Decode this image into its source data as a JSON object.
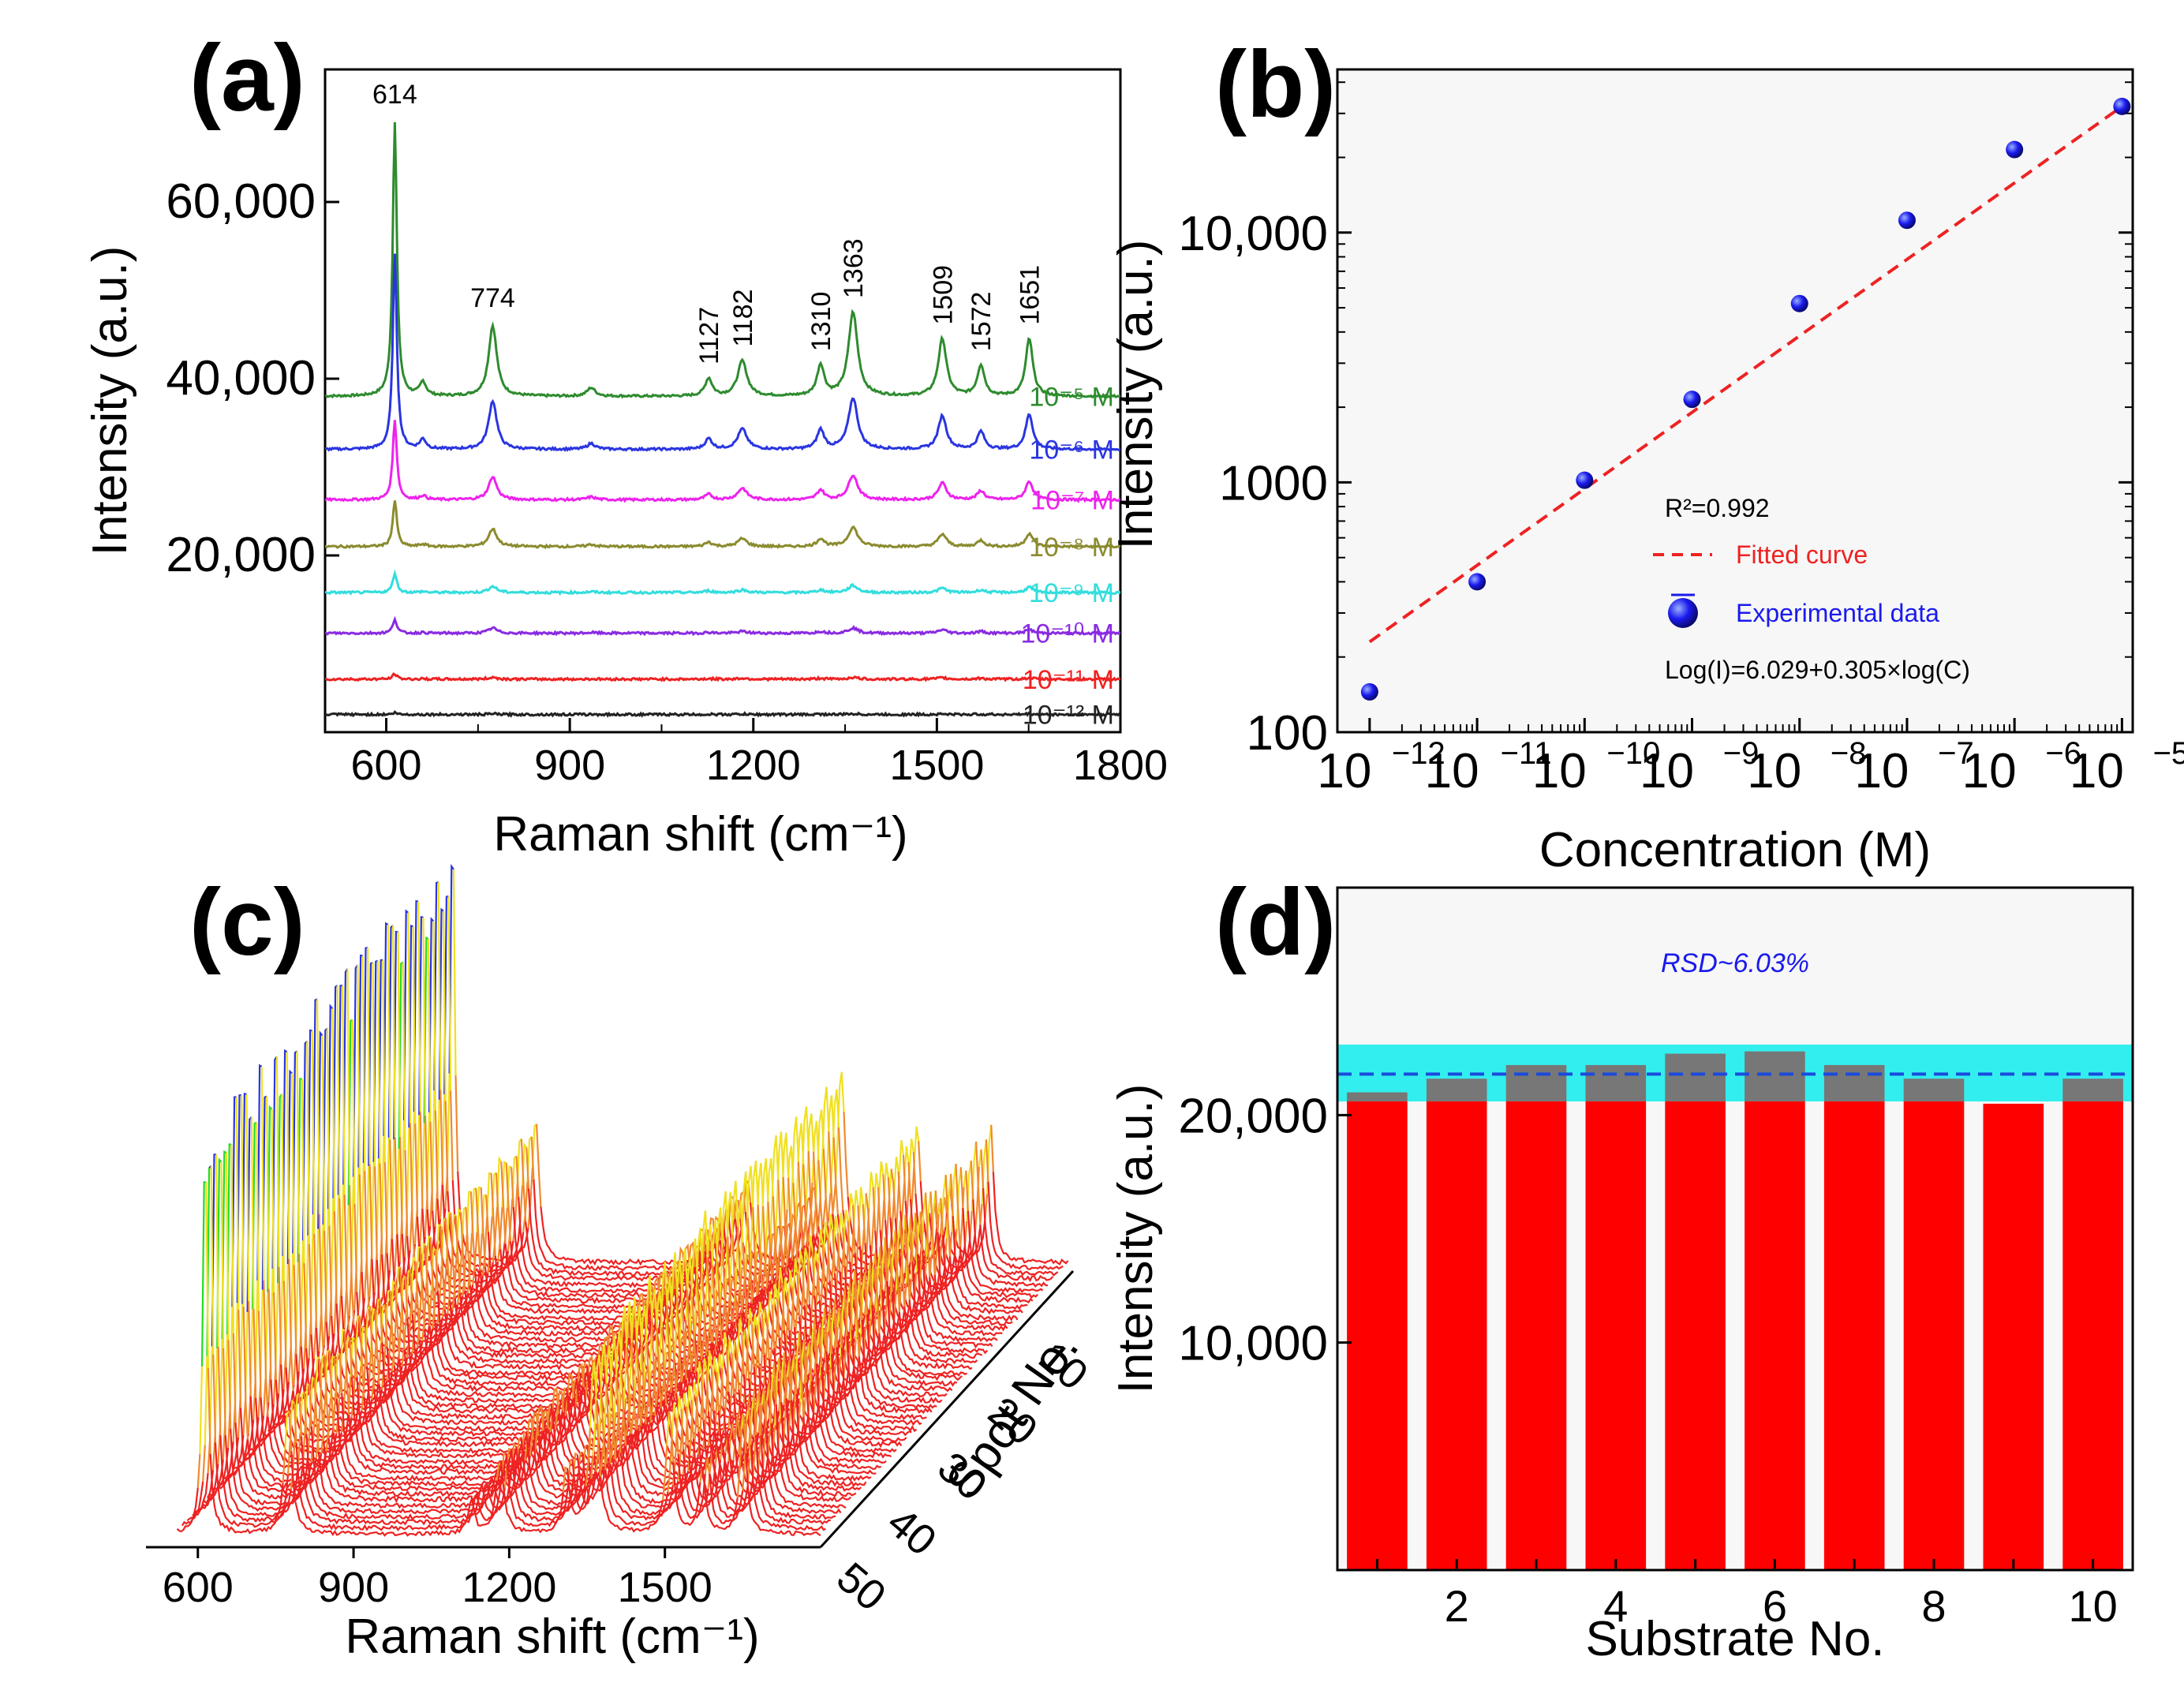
{
  "chart_data": [
    {
      "panel": "(a)",
      "type": "line",
      "title": "",
      "xlabel": "Raman shift (cm⁻¹)",
      "ylabel": "Intensity (a.u.)",
      "xlim": [
        500,
        1800
      ],
      "ylim": [
        0,
        75000
      ],
      "xticks": [
        "600",
        "900",
        "1200",
        "1500",
        "1800"
      ],
      "yticks": [
        "20,000",
        "40,000",
        "60,000"
      ],
      "ytick_values": [
        20000,
        40000,
        60000
      ],
      "peak_labels": [
        "614",
        "774",
        "1127",
        "1182",
        "1310",
        "1363",
        "1509",
        "1572",
        "1651"
      ],
      "peak_positions": [
        614,
        774,
        1127,
        1182,
        1310,
        1363,
        1509,
        1572,
        1651
      ],
      "series": [
        {
          "name": "10⁻⁵ M",
          "color": "#2e8b2e",
          "baseline": 38000,
          "peaks": [
            31000,
            8000,
            2000,
            4000,
            3500,
            9500,
            6500,
            3500,
            6500
          ]
        },
        {
          "name": "10⁻⁶ M",
          "color": "#2a35e0",
          "baseline": 32000,
          "peaks": [
            22000,
            5500,
            1200,
            2300,
            2200,
            5800,
            3800,
            2000,
            4000
          ]
        },
        {
          "name": "10⁻⁷ M",
          "color": "#ee22ee",
          "baseline": 26300,
          "peaks": [
            9000,
            2600,
            600,
            1300,
            1100,
            2800,
            1900,
            1000,
            2100
          ]
        },
        {
          "name": "10⁻⁸ M",
          "color": "#8b8b30",
          "baseline": 21000,
          "peaks": [
            5200,
            2000,
            500,
            900,
            900,
            2200,
            1400,
            700,
            1500
          ]
        },
        {
          "name": "10⁻⁹ M",
          "color": "#33dddd",
          "baseline": 15800,
          "peaks": [
            2200,
            700,
            200,
            300,
            300,
            800,
            500,
            300,
            600
          ]
        },
        {
          "name": "10⁻¹⁰ M",
          "color": "#8a2be2",
          "baseline": 11200,
          "peaks": [
            1600,
            600,
            100,
            200,
            200,
            600,
            400,
            200,
            400
          ]
        },
        {
          "name": "10⁻¹¹ M",
          "color": "#ee2222",
          "baseline": 6000,
          "peaks": [
            600,
            200,
            50,
            100,
            100,
            200,
            150,
            100,
            150
          ]
        },
        {
          "name": "10⁻¹² M",
          "color": "#222222",
          "baseline": 2000,
          "peaks": [
            200,
            80,
            20,
            40,
            40,
            80,
            60,
            40,
            60
          ]
        }
      ]
    },
    {
      "panel": "(b)",
      "type": "scatter",
      "title": "",
      "xlabel": "Concentration (M)",
      "ylabel": "Intensity (a.u.)",
      "xscale": "log",
      "yscale": "log",
      "xlim_exp": [
        -12.3,
        -4.9
      ],
      "ylim": [
        100,
        45000
      ],
      "xtick_labels": [
        {
          "base": "10",
          "exp": "−12"
        },
        {
          "base": "10",
          "exp": "−11"
        },
        {
          "base": "10",
          "exp": "−10"
        },
        {
          "base": "10",
          "exp": "−9"
        },
        {
          "base": "10",
          "exp": "−8"
        },
        {
          "base": "10",
          "exp": "−7"
        },
        {
          "base": "10",
          "exp": "−6"
        },
        {
          "base": "10",
          "exp": "−5"
        }
      ],
      "xtick_exps": [
        -12,
        -11,
        -10,
        -9,
        -8,
        -7,
        -6,
        -5
      ],
      "yticks": [
        "100",
        "1000",
        "10,000"
      ],
      "ytick_values": [
        100,
        1000,
        10000
      ],
      "points": [
        {
          "x_exp": -12,
          "y": 145
        },
        {
          "x_exp": -11,
          "y": 400
        },
        {
          "x_exp": -10,
          "y": 1020
        },
        {
          "x_exp": -9,
          "y": 2150
        },
        {
          "x_exp": -8,
          "y": 5200
        },
        {
          "x_exp": -7,
          "y": 11200
        },
        {
          "x_exp": -6,
          "y": 21500
        },
        {
          "x_exp": -5,
          "y": 32000
        }
      ],
      "fit": {
        "intercept": 6.029,
        "slope": 0.305,
        "x_exp_range": [
          -12,
          -5
        ],
        "y_range": [
          230,
          32000
        ]
      },
      "annotations": {
        "r2": "R²=0.992",
        "fit_legend": "Fitted curve",
        "data_legend": "Experimental data",
        "equation": "Log(I)=6.029+0.305×log(C)"
      },
      "colors": {
        "points": "#1a1aee",
        "fit": "#ee2222"
      }
    },
    {
      "panel": "(c)",
      "type": "line",
      "title": "",
      "xlabel": "Raman shift (cm⁻¹)",
      "zlabel": "Spot No.",
      "xticks": [
        "600",
        "900",
        "1200",
        "1500"
      ],
      "zticks": [
        "10",
        "20",
        "30",
        "40",
        "50"
      ],
      "spot_count": 50,
      "peak_positions": [
        614,
        774,
        1127,
        1182,
        1310,
        1363,
        1509,
        1572,
        1651
      ],
      "relative_peaks": [
        1.0,
        0.32,
        0.08,
        0.18,
        0.16,
        0.42,
        0.3,
        0.16,
        0.3
      ],
      "colors": {
        "low": "#ee2222",
        "mid": "#f0e020",
        "high1": "#22dd22",
        "high2": "#2a35e0"
      }
    },
    {
      "panel": "(d)",
      "type": "bar",
      "title": "",
      "xlabel": "Substrate No.",
      "ylabel": "Intensity (a.u.)",
      "categories": [
        "1",
        "2",
        "3",
        "4",
        "5",
        "6",
        "7",
        "8",
        "9",
        "10"
      ],
      "xticks": [
        "2",
        "4",
        "6",
        "8",
        "10"
      ],
      "values": [
        21000,
        21600,
        22200,
        22200,
        22700,
        22800,
        22200,
        21600,
        20500,
        21600
      ],
      "ylim": [
        0,
        30000
      ],
      "yticks": [
        "10,000",
        "20,000"
      ],
      "ytick_values": [
        10000,
        20000
      ],
      "mean": 21800,
      "band": [
        20600,
        23100
      ],
      "rsd_label": "RSD~6.03%",
      "colors": {
        "bar": "#ff0000",
        "bar_top": "#777777",
        "band": "#33eeee",
        "mean_line": "#1a4bdd",
        "rsd_text": "#1a1aee"
      }
    }
  ],
  "panels": {
    "a": "(a)",
    "b": "(b)",
    "c": "(c)",
    "d": "(d)"
  }
}
